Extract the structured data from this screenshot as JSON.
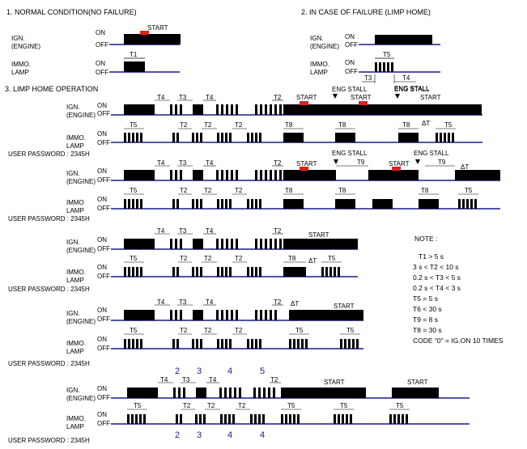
{
  "colors": {
    "base": "#1a1a8c",
    "pulse": "#000000",
    "start_marker": "#e02020",
    "step_numbers": "#1a1a8c"
  },
  "sections": {
    "normal": "1. NORMAL CONDITION(NO FAILURE)",
    "failure": "2. IN CASE OF FAILURE (LIMP HOME)",
    "limp": "3. LIMP HOME OPERATION"
  },
  "labels": {
    "ign1": "IGN.",
    "ign2": "(ENGINE)",
    "immo1": "IMMO.",
    "immo1_alt": "IMMO",
    "immo2": "LAMP",
    "on": "ON",
    "off": "OFF",
    "start": "START",
    "eng_stall": "ENG STALL",
    "password": "USER PASSWORD : 2345H"
  },
  "timers": {
    "t1": "T1",
    "t2": "T2",
    "t3": "T3",
    "t4": "T4",
    "t5": "T5",
    "t8": "T8",
    "t9": "T9",
    "dt": "ΔT"
  },
  "note": {
    "title": "NOTE :",
    "lines": [
      "T1 > 5 s",
      "3 s < T2 < 10 s",
      "0.2 s < T3 < 5  s",
      "0.2 s < T4 < 3 s",
      "T5 = 5 s",
      "T6 < 30 s",
      "T9 = 8 s",
      "T8 = 30 s",
      "CODE \"0\" = IG.ON 10 TIMES"
    ]
  },
  "digits": {
    "top": [
      "2",
      "3",
      "4",
      "5"
    ],
    "bottom": [
      "2",
      "3",
      "4",
      "4"
    ]
  }
}
